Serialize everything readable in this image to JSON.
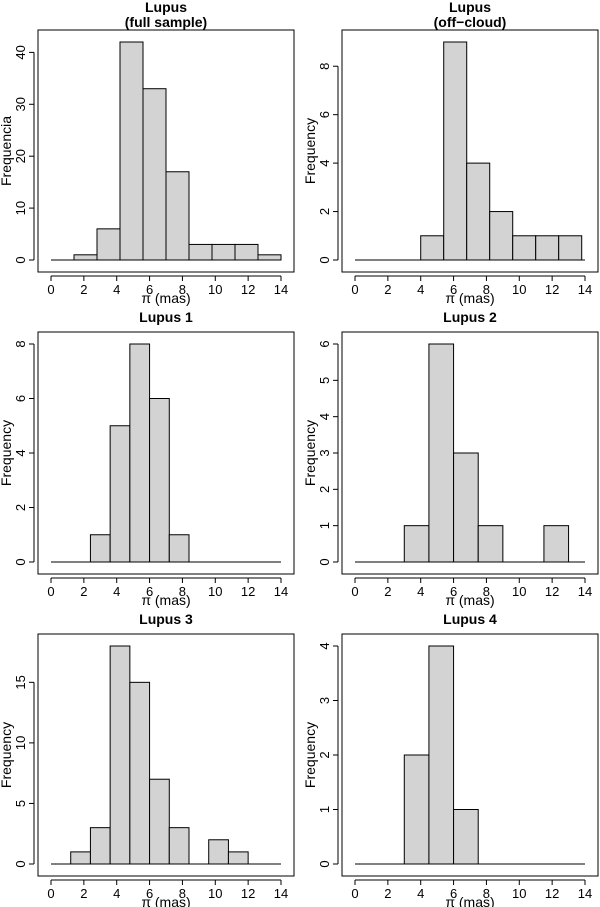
{
  "chart_data": [
    {
      "type": "histogram",
      "title": [
        "Lupus",
        "(full sample)"
      ],
      "xlabel": "π (mas)",
      "ylabel": "Frequencia",
      "xlim": [
        0,
        14
      ],
      "xticks": [
        0,
        2,
        4,
        6,
        8,
        10,
        12,
        14
      ],
      "yticks": [
        0,
        10,
        20,
        30,
        40
      ],
      "ymax": 42,
      "bins": [
        [
          1.4,
          2.8,
          1
        ],
        [
          2.8,
          4.2,
          6
        ],
        [
          4.2,
          5.6,
          42
        ],
        [
          5.6,
          7.0,
          33
        ],
        [
          7.0,
          8.4,
          17
        ],
        [
          8.4,
          9.8,
          3
        ],
        [
          9.8,
          11.2,
          3
        ],
        [
          11.2,
          12.6,
          3
        ],
        [
          12.6,
          14.0,
          1
        ]
      ]
    },
    {
      "type": "histogram",
      "title": [
        "Lupus",
        "(off−cloud)"
      ],
      "xlabel": "π (mas)",
      "ylabel": "Frequency",
      "xlim": [
        0,
        14
      ],
      "xticks": [
        0,
        2,
        4,
        6,
        8,
        10,
        12,
        14
      ],
      "yticks": [
        0,
        2,
        4,
        6,
        8
      ],
      "ymax": 9,
      "bins": [
        [
          4.0,
          5.4,
          1
        ],
        [
          5.4,
          6.8,
          9
        ],
        [
          6.8,
          8.2,
          4
        ],
        [
          8.2,
          9.6,
          2
        ],
        [
          9.6,
          11.0,
          1
        ],
        [
          11.0,
          12.4,
          1
        ],
        [
          12.4,
          13.8,
          1
        ]
      ]
    },
    {
      "type": "histogram",
      "title": [
        "Lupus 1"
      ],
      "xlabel": "π (mas)",
      "ylabel": "Frequency",
      "xlim": [
        0,
        14
      ],
      "xticks": [
        0,
        2,
        4,
        6,
        8,
        10,
        12,
        14
      ],
      "yticks": [
        0,
        2,
        4,
        6,
        8
      ],
      "ymax": 8,
      "bins": [
        [
          2.4,
          3.6,
          1
        ],
        [
          3.6,
          4.8,
          5
        ],
        [
          4.8,
          6.0,
          8
        ],
        [
          6.0,
          7.2,
          6
        ],
        [
          7.2,
          8.4,
          1
        ]
      ]
    },
    {
      "type": "histogram",
      "title": [
        "Lupus 2"
      ],
      "xlabel": "π (mas)",
      "ylabel": "Frequency",
      "xlim": [
        0,
        14
      ],
      "xticks": [
        0,
        2,
        4,
        6,
        8,
        10,
        12,
        14
      ],
      "yticks": [
        0,
        1,
        2,
        3,
        4,
        5,
        6
      ],
      "ymax": 6,
      "bins": [
        [
          3.0,
          4.5,
          1
        ],
        [
          4.5,
          6.0,
          6
        ],
        [
          6.0,
          7.5,
          3
        ],
        [
          7.5,
          9.0,
          1
        ],
        [
          11.5,
          13.0,
          1
        ]
      ]
    },
    {
      "type": "histogram",
      "title": [
        "Lupus 3"
      ],
      "xlabel": "π (mas)",
      "ylabel": "Frequency",
      "xlim": [
        0,
        14
      ],
      "xticks": [
        0,
        2,
        4,
        6,
        8,
        10,
        12,
        14
      ],
      "yticks": [
        0,
        5,
        10,
        15
      ],
      "ymax": 18,
      "bins": [
        [
          1.2,
          2.4,
          1
        ],
        [
          2.4,
          3.6,
          3
        ],
        [
          3.6,
          4.8,
          18
        ],
        [
          4.8,
          6.0,
          15
        ],
        [
          6.0,
          7.2,
          7
        ],
        [
          7.2,
          8.4,
          3
        ],
        [
          9.6,
          10.8,
          2
        ],
        [
          10.8,
          12.0,
          1
        ]
      ]
    },
    {
      "type": "histogram",
      "title": [
        "Lupus 4"
      ],
      "xlabel": "π (mas)",
      "ylabel": "Frequency",
      "xlim": [
        0,
        14
      ],
      "xticks": [
        0,
        2,
        4,
        6,
        8,
        10,
        12,
        14
      ],
      "yticks": [
        0,
        1,
        2,
        3,
        4
      ],
      "ymax": 4,
      "bins": [
        [
          3.0,
          4.5,
          2
        ],
        [
          4.5,
          6.0,
          4
        ],
        [
          6.0,
          7.5,
          1
        ]
      ]
    }
  ],
  "colors": {
    "bar_fill": "#d3d3d3",
    "stroke": "#000000",
    "background": "#ffffff"
  }
}
